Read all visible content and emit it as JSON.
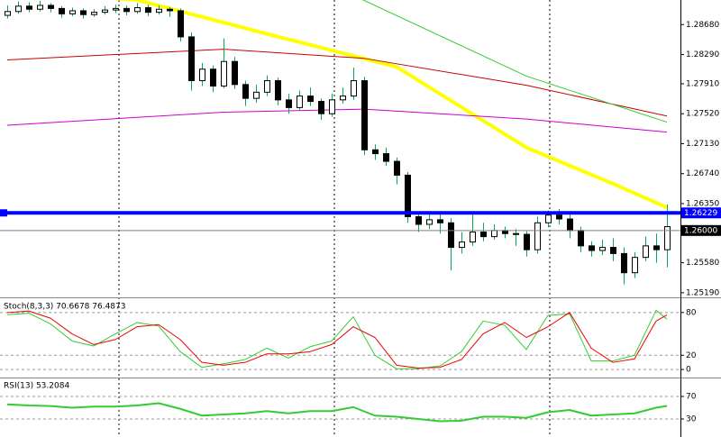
{
  "chart_data": [
    {
      "type": "candlestick",
      "ohlc": [
        [
          1.288,
          1.2893,
          1.2876,
          1.2885
        ],
        [
          1.2885,
          1.2898,
          1.2882,
          1.2892
        ],
        [
          1.2892,
          1.2897,
          1.2884,
          1.2888
        ],
        [
          1.2888,
          1.2899,
          1.2885,
          1.2893
        ],
        [
          1.2893,
          1.2896,
          1.2884,
          1.2889
        ],
        [
          1.2889,
          1.2892,
          1.2877,
          1.2882
        ],
        [
          1.2882,
          1.289,
          1.2879,
          1.2886
        ],
        [
          1.2886,
          1.2889,
          1.2876,
          1.2881
        ],
        [
          1.2881,
          1.2888,
          1.2878,
          1.2884
        ],
        [
          1.2884,
          1.2892,
          1.2881,
          1.2887
        ],
        [
          1.2887,
          1.2894,
          1.2883,
          1.2889
        ],
        [
          1.2889,
          1.2893,
          1.288,
          1.2885
        ],
        [
          1.2885,
          1.2896,
          1.2882,
          1.289
        ],
        [
          1.289,
          1.2894,
          1.2879,
          1.2884
        ],
        [
          1.2884,
          1.2893,
          1.2881,
          1.2888
        ],
        [
          1.2888,
          1.2891,
          1.2878,
          1.2886
        ],
        [
          1.2886,
          1.2889,
          1.2846,
          1.2852
        ],
        [
          1.2852,
          1.2858,
          1.2782,
          1.2795
        ],
        [
          1.2795,
          1.2818,
          1.2788,
          1.281
        ],
        [
          1.281,
          1.2815,
          1.278,
          1.2788
        ],
        [
          1.2788,
          1.285,
          1.2785,
          1.282
        ],
        [
          1.282,
          1.2826,
          1.2784,
          1.279
        ],
        [
          1.279,
          1.2795,
          1.2762,
          1.2772
        ],
        [
          1.2772,
          1.279,
          1.2766,
          1.278
        ],
        [
          1.278,
          1.2802,
          1.2775,
          1.2795
        ],
        [
          1.2795,
          1.2799,
          1.2763,
          1.277
        ],
        [
          1.277,
          1.2778,
          1.2752,
          1.276
        ],
        [
          1.276,
          1.2782,
          1.2756,
          1.2775
        ],
        [
          1.2775,
          1.2786,
          1.2762,
          1.2768
        ],
        [
          1.2768,
          1.2772,
          1.2744,
          1.2752
        ],
        [
          1.2752,
          1.2778,
          1.2748,
          1.277
        ],
        [
          1.277,
          1.2786,
          1.2765,
          1.2775
        ],
        [
          1.2775,
          1.2812,
          1.277,
          1.2795
        ],
        [
          1.2795,
          1.28,
          1.2698,
          1.2705
        ],
        [
          1.2705,
          1.2712,
          1.2692,
          1.27
        ],
        [
          1.27,
          1.2708,
          1.2684,
          1.269
        ],
        [
          1.269,
          1.2695,
          1.266,
          1.2672
        ],
        [
          1.2672,
          1.2676,
          1.261,
          1.2618
        ],
        [
          1.2618,
          1.2625,
          1.2598,
          1.2608
        ],
        [
          1.2608,
          1.2624,
          1.2602,
          1.2614
        ],
        [
          1.2614,
          1.2624,
          1.2596,
          1.261
        ],
        [
          1.261,
          1.2616,
          1.2548,
          1.2578
        ],
        [
          1.2578,
          1.2598,
          1.257,
          1.2585
        ],
        [
          1.2585,
          1.2622,
          1.258,
          1.2598
        ],
        [
          1.2598,
          1.261,
          1.2586,
          1.2592
        ],
        [
          1.2592,
          1.2608,
          1.2588,
          1.26
        ],
        [
          1.26,
          1.2605,
          1.259,
          1.2596
        ],
        [
          1.2596,
          1.2602,
          1.258,
          1.2595
        ],
        [
          1.2595,
          1.2599,
          1.2566,
          1.2575
        ],
        [
          1.2575,
          1.2618,
          1.257,
          1.261
        ],
        [
          1.261,
          1.2626,
          1.2604,
          1.262
        ],
        [
          1.262,
          1.2628,
          1.2608,
          1.2615
        ],
        [
          1.2615,
          1.2625,
          1.259,
          1.26
        ],
        [
          1.26,
          1.2605,
          1.2572,
          1.258
        ],
        [
          1.258,
          1.2586,
          1.2566,
          1.2574
        ],
        [
          1.2574,
          1.2588,
          1.2568,
          1.2578
        ],
        [
          1.2578,
          1.259,
          1.256,
          1.257
        ],
        [
          1.257,
          1.2578,
          1.253,
          1.2545
        ],
        [
          1.2545,
          1.2572,
          1.2538,
          1.2565
        ],
        [
          1.2565,
          1.2592,
          1.256,
          1.258
        ],
        [
          1.258,
          1.2596,
          1.2558,
          1.2575
        ],
        [
          1.2575,
          1.2634,
          1.2552,
          1.2605
        ]
      ],
      "up_color": "#ffffff",
      "down_color": "#000000",
      "wick_color": "#00b050",
      "lines": [
        {
          "color": "#ffff00",
          "width": 4,
          "x": [
            0,
            12,
            24,
            36,
            48,
            56,
            61
          ],
          "values": [
            1.2912,
            1.29,
            1.2856,
            1.2813,
            1.2708,
            1.2661,
            1.263
          ]
        },
        {
          "color": "#cc0000",
          "width": 1,
          "x": [
            0,
            20,
            33,
            48,
            61
          ],
          "values": [
            1.2822,
            1.2836,
            1.2824,
            1.2789,
            1.2749
          ]
        },
        {
          "color": "#33cc33",
          "width": 1,
          "x": [
            32,
            48,
            61
          ],
          "values": [
            1.2906,
            1.2801,
            1.2741
          ]
        },
        {
          "color": "#cc00cc",
          "width": 1,
          "x": [
            0,
            20,
            33,
            48,
            61
          ],
          "values": [
            1.2737,
            1.2754,
            1.2758,
            1.2745,
            1.2728
          ]
        }
      ],
      "levels": [
        {
          "value": 1.26229,
          "label": "1.26229",
          "color": "#0000ff"
        },
        {
          "value": 1.26,
          "label": "1.26000",
          "color": "#808080"
        }
      ],
      "ylim": [
        1.2513,
        1.29
      ],
      "yticks": [
        {
          "value": 1.2868,
          "label": "1.28680"
        },
        {
          "value": 1.2829,
          "label": "1.28290"
        },
        {
          "value": 1.2791,
          "label": "1.27910"
        },
        {
          "value": 1.2752,
          "label": "1.27520"
        },
        {
          "value": 1.2713,
          "label": "1.27130"
        },
        {
          "value": 1.2674,
          "label": "1.26740"
        },
        {
          "value": 1.2635,
          "label": "1.26350"
        },
        {
          "value": 1.2558,
          "label": "1.25580"
        },
        {
          "value": 1.2519,
          "label": "1.25190"
        }
      ]
    },
    {
      "type": "line",
      "title": "Stoch(8,3,3) 70.6678 76.4873",
      "x": [
        0,
        2,
        4,
        6,
        8,
        10,
        12,
        14,
        16,
        18,
        20,
        22,
        24,
        26,
        28,
        30,
        32,
        34,
        36,
        38,
        40,
        42,
        44,
        46,
        48,
        50,
        52,
        54,
        56,
        58,
        60,
        61
      ],
      "series": [
        {
          "color": "#33cc33",
          "values": [
            77,
            79,
            64,
            40,
            33,
            50,
            66,
            61,
            25,
            3,
            8,
            14,
            30,
            16,
            32,
            40,
            74,
            20,
            1,
            1,
            5,
            25,
            68,
            62,
            28,
            76,
            78,
            12,
            12,
            20,
            83,
            70.6678
          ]
        },
        {
          "color": "#ee0000",
          "values": [
            80,
            82,
            72,
            50,
            35,
            42,
            60,
            63,
            42,
            10,
            6,
            10,
            22,
            22,
            25,
            35,
            60,
            45,
            6,
            2,
            3,
            14,
            50,
            66,
            45,
            60,
            80,
            30,
            10,
            15,
            68,
            76.4873
          ]
        }
      ],
      "ylim": [
        -10,
        100
      ],
      "yticks": [
        80,
        20,
        0
      ],
      "grid": true
    },
    {
      "type": "line",
      "title": "RSI(13) 53.2084",
      "x": [
        0,
        2,
        4,
        6,
        8,
        10,
        12,
        14,
        16,
        18,
        20,
        22,
        24,
        26,
        28,
        30,
        32,
        34,
        36,
        38,
        40,
        42,
        44,
        46,
        48,
        50,
        52,
        54,
        56,
        58,
        60,
        61
      ],
      "series": [
        {
          "color": "#33cc33",
          "values": [
            56,
            54,
            53,
            50,
            52,
            52,
            54,
            58,
            48,
            36,
            38,
            40,
            44,
            40,
            44,
            44,
            51,
            36,
            34,
            30,
            26,
            27,
            34,
            34,
            32,
            42,
            46,
            36,
            38,
            40,
            50,
            53.2084
          ]
        }
      ],
      "ylim": [
        -2,
        102
      ],
      "yticks": [
        70,
        30
      ],
      "grid": true
    }
  ]
}
